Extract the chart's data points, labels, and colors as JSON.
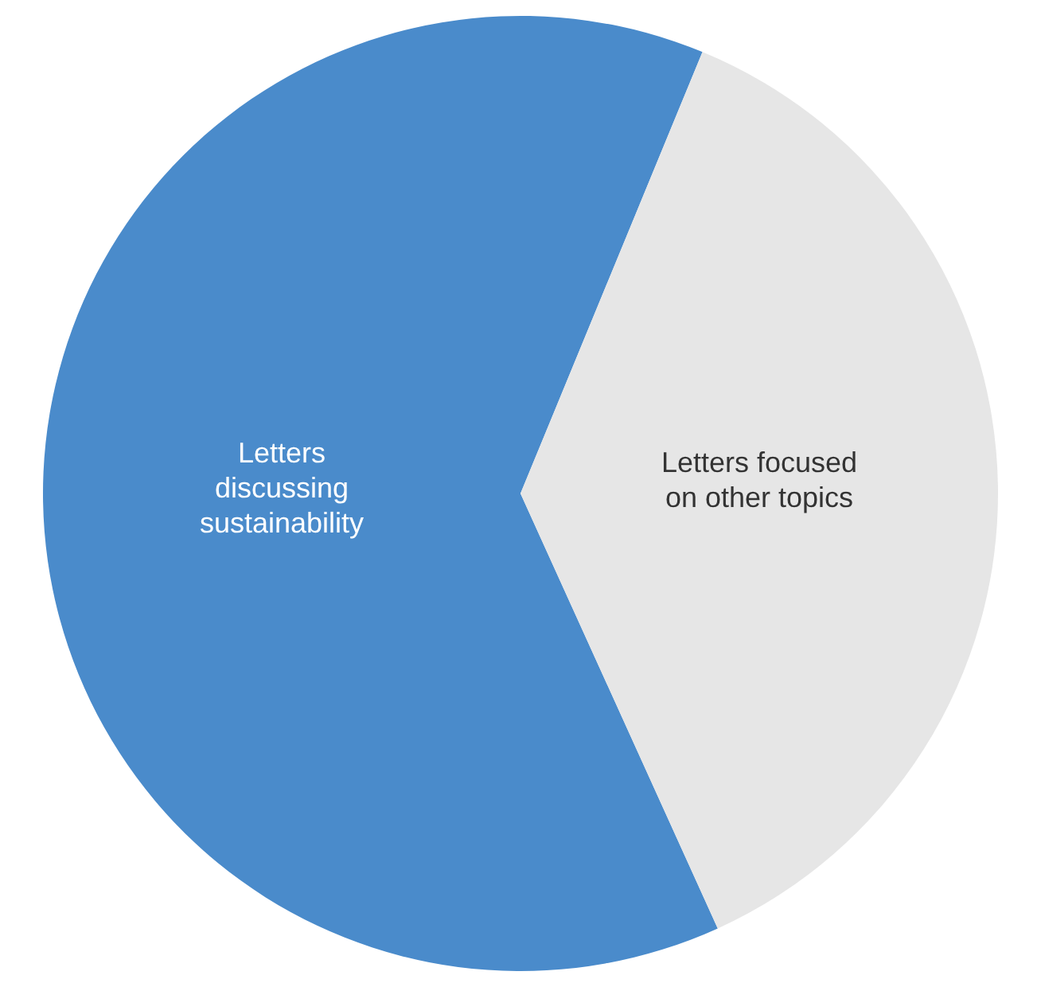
{
  "chart_data": {
    "type": "pie",
    "categories": [
      "Letters discussing sustainability",
      "Letters focused on other topics"
    ],
    "values": [
      63,
      37
    ],
    "colors": [
      "#4a8bcb",
      "#e6e6e6"
    ]
  }
}
